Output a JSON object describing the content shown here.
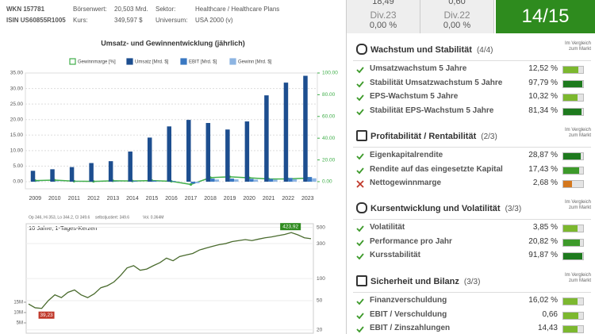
{
  "header": {
    "rows": [
      [
        "WKN 157781",
        "Börsenwert:",
        "20,503 Mrd.",
        "Sektor:",
        "Healthcare / Healthcare Plans"
      ],
      [
        "ISIN US60855R1005",
        "Kurs:",
        "349,597 $",
        "Universum:",
        "USA 2000 (v)"
      ]
    ]
  },
  "kpis": [
    {
      "value": "18,49"
    },
    {
      "value": "0,60"
    },
    {
      "label": "Div.23",
      "value": "0,00 %"
    },
    {
      "label": "Div.22",
      "value": "0,00 %"
    }
  ],
  "score": "14/15",
  "chart_data": [
    {
      "type": "bar",
      "title": "Umsatz- und Gewinnentwicklung (jährlich)",
      "categories": [
        "2009",
        "2010",
        "2011",
        "2012",
        "2013",
        "2014",
        "2015",
        "2016",
        "2017",
        "2018",
        "2019",
        "2020",
        "2021",
        "2022",
        "2023"
      ],
      "series": [
        {
          "name": "Gewinnmarge [%]",
          "color": "#3fae49",
          "axis": "y2",
          "type": "line",
          "values": [
            1.0,
            1.4,
            0.4,
            0.2,
            0.8,
            0.6,
            1.0,
            0.3,
            -2.6,
            3.7,
            4.4,
            3.5,
            2.4,
            2.5,
            3.2
          ]
        },
        {
          "name": "Umsatz [Mrd. $]",
          "color": "#1d4e8f",
          "values": [
            3.5,
            4.0,
            4.7,
            6.0,
            6.6,
            9.7,
            14.2,
            17.8,
            19.9,
            18.9,
            16.8,
            19.4,
            27.8,
            31.9,
            34.1
          ]
        },
        {
          "name": "EBIT [Mrd. $]",
          "color": "#3a78c2",
          "values": [
            0.1,
            0.1,
            0.05,
            0.02,
            0.1,
            0.2,
            0.3,
            0.2,
            -0.6,
            1.0,
            1.0,
            0.9,
            0.9,
            1.2,
            1.5
          ]
        },
        {
          "name": "Gewinn [Mrd. $]",
          "color": "#8db4e2",
          "values": [
            0.03,
            0.05,
            0.02,
            0.01,
            0.05,
            0.06,
            0.14,
            0.05,
            -0.5,
            0.7,
            0.74,
            0.67,
            0.66,
            0.79,
            1.09
          ]
        }
      ],
      "ylim": [
        -2.3,
        35
      ],
      "yticks": [
        {
          "value": 0,
          "label": "0.00"
        },
        {
          "value": 5,
          "label": "5.00"
        },
        {
          "value": 10,
          "label": "10.00"
        },
        {
          "value": 15,
          "label": "15.00"
        },
        {
          "value": 20,
          "label": "20.00"
        },
        {
          "value": 25,
          "label": "25.00"
        },
        {
          "value": 30,
          "label": "30.00"
        },
        {
          "value": 35,
          "label": "35.00"
        }
      ],
      "y2lim": [
        -6.6,
        100
      ],
      "y2ticks": [
        {
          "value": 0,
          "label": "0.00"
        },
        {
          "value": 20,
          "label": "20.00"
        },
        {
          "value": 40,
          "label": "40.00"
        },
        {
          "value": 60,
          "label": "60.00"
        },
        {
          "value": 80,
          "label": "80.00"
        },
        {
          "value": 100,
          "label": "100.00"
        }
      ],
      "grid": true
    },
    {
      "type": "line",
      "title": "10 Jahre, 1-Tages-Kerzen",
      "info": [
        "Op 346, Hi 353, Lo 344.2, Cl 349.6",
        "selbstjustiert: 349.6",
        "Vol. 0.364M"
      ],
      "series": [
        {
          "name": "Kurs",
          "color": "#4a6b2e",
          "values": [
            45,
            40,
            39.23,
            50,
            60,
            55,
            65,
            70,
            60,
            55,
            62,
            75,
            80,
            90,
            110,
            140,
            150,
            130,
            135,
            150,
            165,
            190,
            175,
            200,
            210,
            220,
            245,
            260,
            275,
            290,
            300,
            320,
            330,
            340,
            330,
            345,
            360,
            370,
            385,
            400,
            423.92,
            395,
            360,
            349.6
          ]
        }
      ],
      "high_label": "423,92",
      "low_label": "39,23",
      "log_scale": true,
      "ylim": [
        18,
        560
      ],
      "yticks": [
        20,
        50,
        100,
        300,
        500
      ],
      "y2lim": [
        0,
        53000000
      ],
      "y2ticks": [
        {
          "value": 5000000,
          "label": "5M"
        },
        {
          "value": 10000000,
          "label": "10M"
        },
        {
          "value": 15000000,
          "label": "15M"
        }
      ],
      "grid": true
    }
  ],
  "scorecard": [
    {
      "title": "Wachstum und Stabilität",
      "score": "(4/4)",
      "note": "Im Vergleich zum Markt",
      "items": [
        {
          "name": "Umsatzwachstum 5 Jahre",
          "value": "12,52 %",
          "rating": 75,
          "color": "#7cb82f",
          "pass": true
        },
        {
          "name": "Stabilität Umsatzwachstum 5 Jahre",
          "value": "97,79 %",
          "rating": 95,
          "color": "#1e7a1e",
          "pass": true
        },
        {
          "name": "EPS-Wachstum 5 Jahre",
          "value": "10,32 %",
          "rating": 70,
          "color": "#7cb82f",
          "pass": true
        },
        {
          "name": "Stabilität EPS-Wachstum 5 Jahre",
          "value": "81,34 %",
          "rating": 90,
          "color": "#1e7a1e",
          "pass": true
        }
      ]
    },
    {
      "title": "Profitabilität / Rentabilität",
      "score": "(2/3)",
      "note": "Im Vergleich zum Markt",
      "items": [
        {
          "name": "Eigenkapitalrendite",
          "value": "28,87 %",
          "rating": 88,
          "color": "#1e7a1e",
          "pass": true
        },
        {
          "name": "Rendite auf das eingesetzte Kapital",
          "value": "17,43 %",
          "rating": 80,
          "color": "#3d9a2a",
          "pass": true
        },
        {
          "name": "Nettogewinnmarge",
          "value": "2,68 %",
          "rating": 45,
          "color": "#d4781e",
          "pass": false
        }
      ]
    },
    {
      "title": "Kursentwicklung und Volatilität",
      "score": "(3/3)",
      "note": "Im Vergleich zum Markt",
      "items": [
        {
          "name": "Volatilität",
          "value": "3,85 %",
          "rating": 70,
          "color": "#7cb82f",
          "pass": true
        },
        {
          "name": "Performance pro Jahr",
          "value": "20,82 %",
          "rating": 85,
          "color": "#3d9a2a",
          "pass": true
        },
        {
          "name": "Kursstabilität",
          "value": "91,87 %",
          "rating": 95,
          "color": "#1e7a1e",
          "pass": true
        }
      ]
    },
    {
      "title": "Sicherheit und Bilanz",
      "score": "(3/3)",
      "note": "Im Vergleich zum Markt",
      "items": [
        {
          "name": "Finanzverschuldung",
          "value": "16,02 %",
          "rating": 70,
          "color": "#7cb82f",
          "pass": true
        },
        {
          "name": "EBIT / Verschuldung",
          "value": "0,66",
          "rating": 75,
          "color": "#7cb82f",
          "pass": true
        },
        {
          "name": "EBIT / Zinszahlungen",
          "value": "14,43",
          "rating": 72,
          "color": "#7cb82f",
          "pass": true
        }
      ]
    }
  ]
}
